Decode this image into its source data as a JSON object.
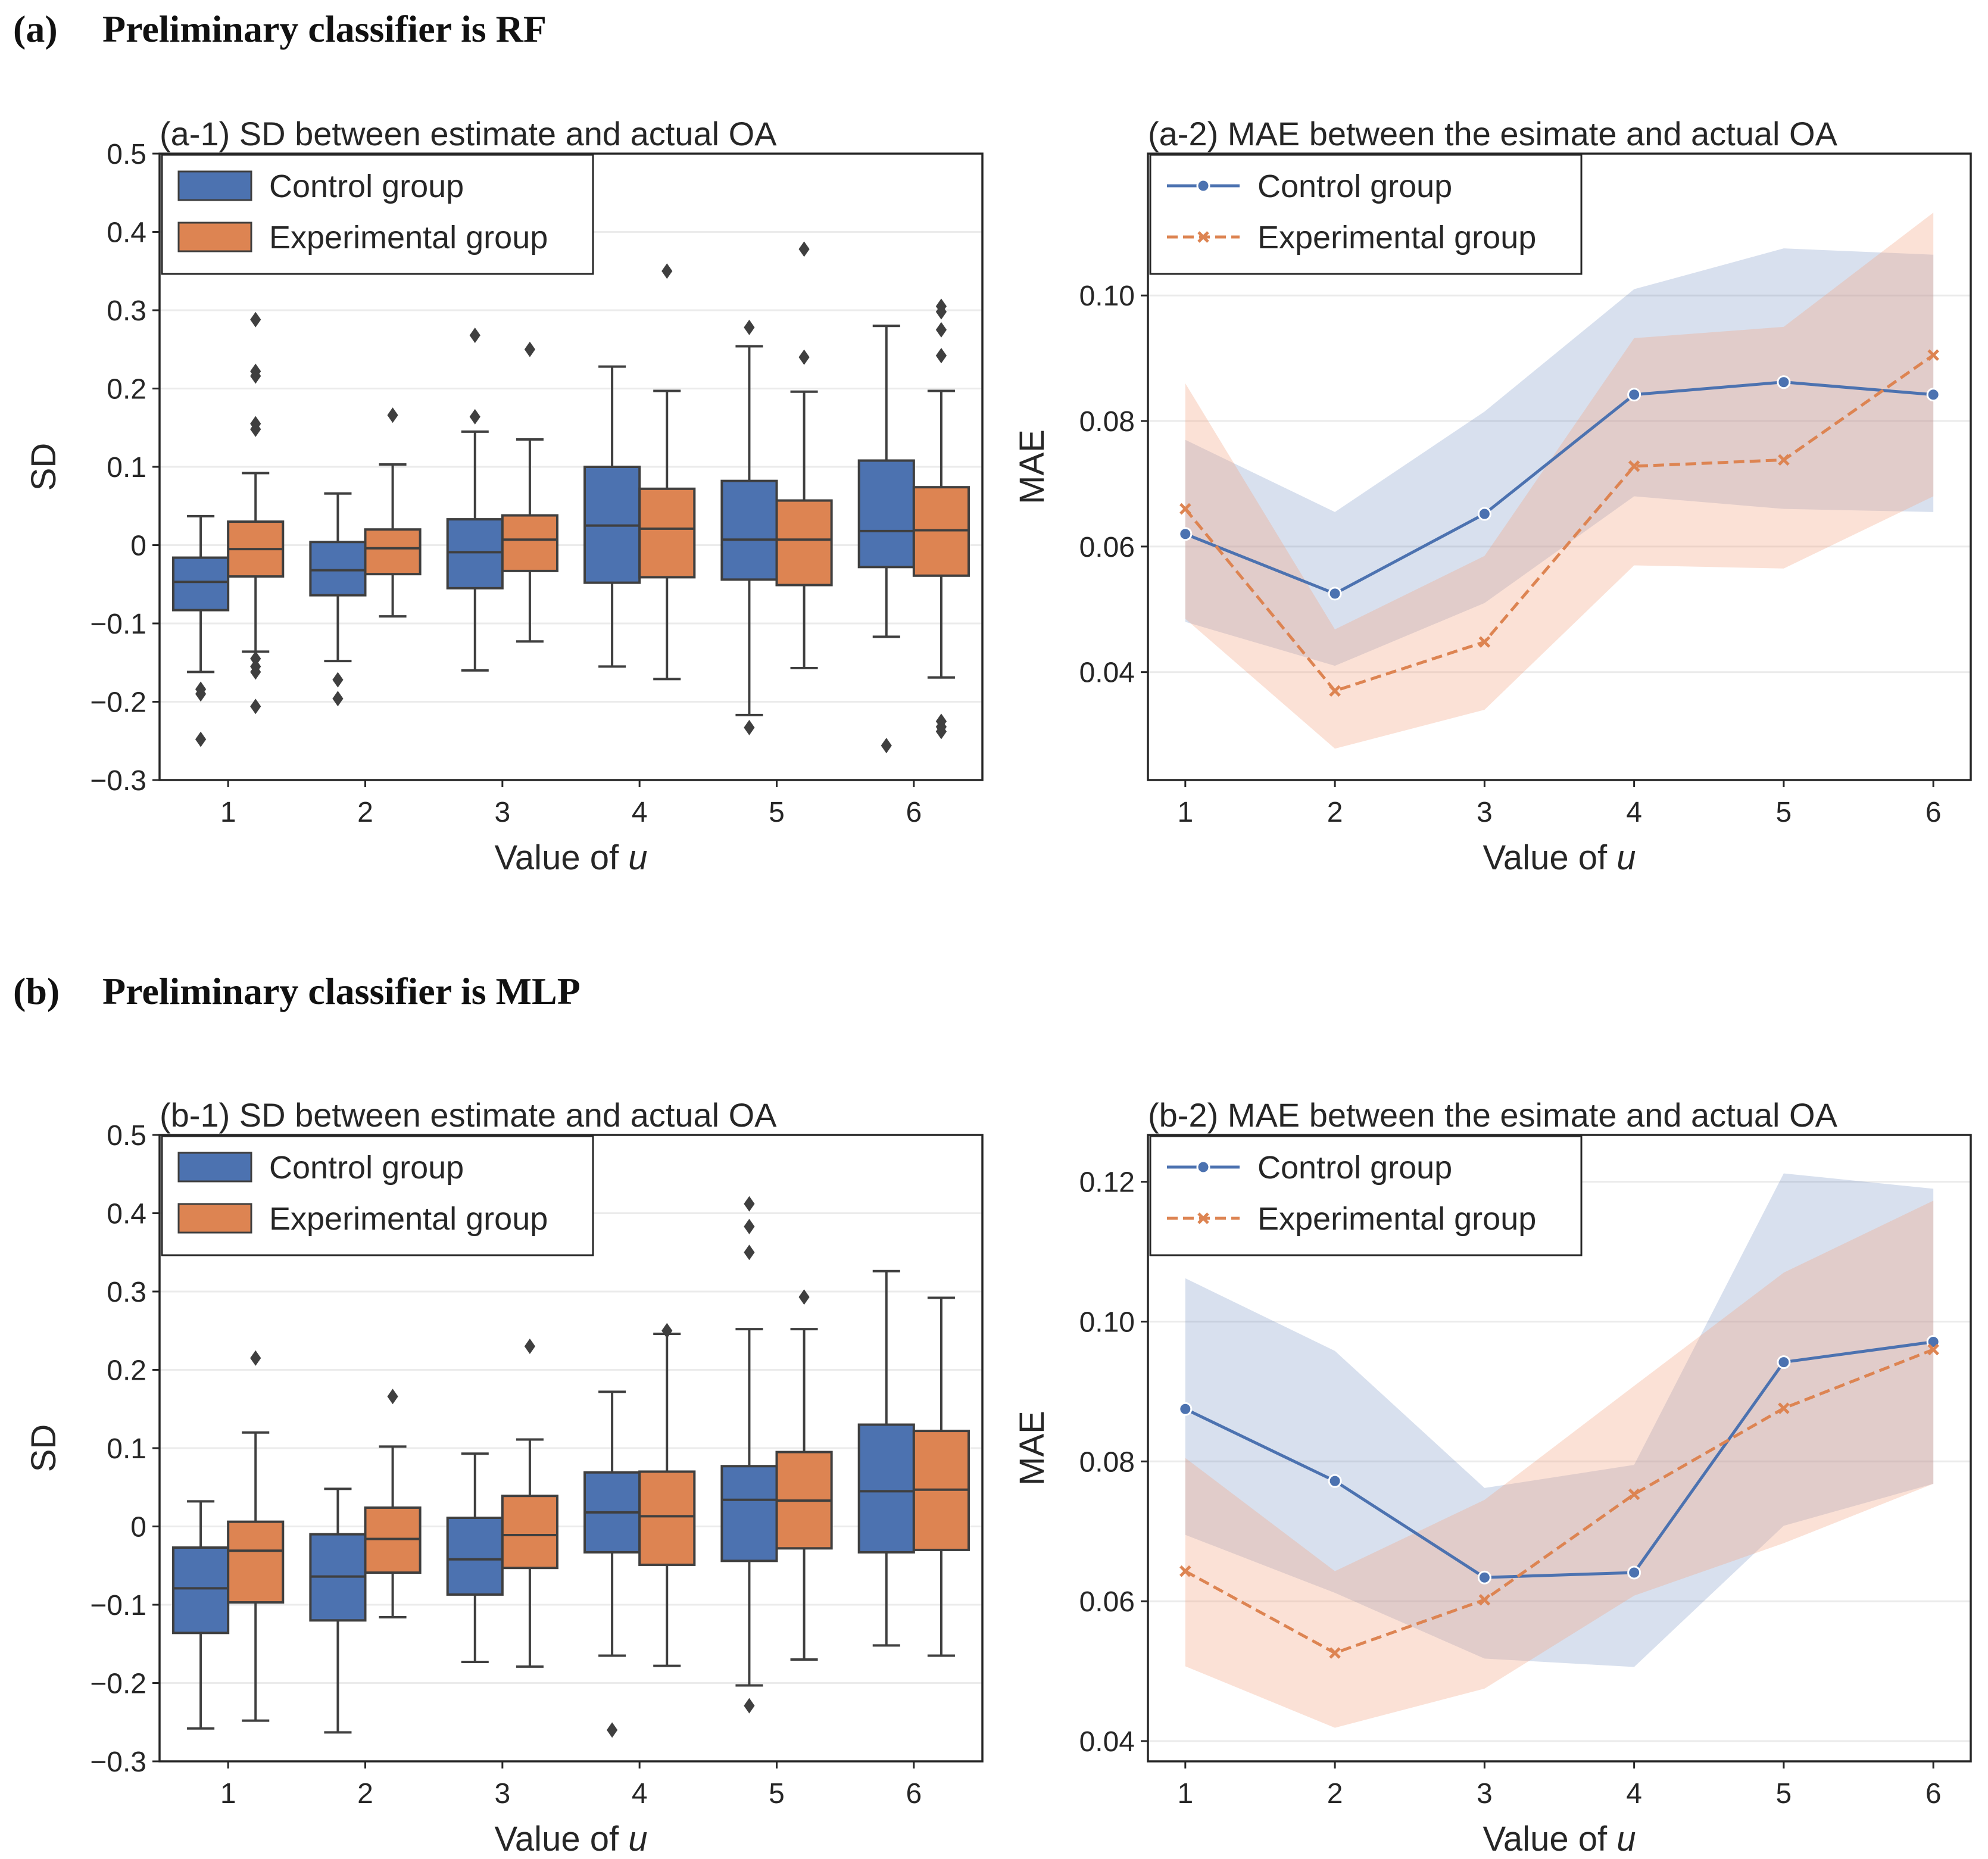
{
  "sections": [
    {
      "tag": "(a)",
      "title": "Preliminary classifier is RF"
    },
    {
      "tag": "(b)",
      "title": "Preliminary classifier is MLP"
    }
  ],
  "colors": {
    "control": "#4c72b0",
    "experimental": "#dd8452",
    "control_band": "#4c72b0",
    "experimental_band": "#f4a582",
    "whisker": "#3f3f3f"
  },
  "chart_data": [
    {
      "id": "a1",
      "type": "box",
      "title": "(a-1) SD between estimate and actual OA",
      "xlabel_prefix": "Value of ",
      "xlabel_var": "u",
      "ylabel": "SD",
      "categories": [
        "1",
        "2",
        "3",
        "4",
        "5",
        "6"
      ],
      "ylim": [
        -0.3,
        0.5
      ],
      "yticks": [
        -0.3,
        -0.2,
        -0.1,
        0,
        0.1,
        0.2,
        0.3,
        0.4,
        0.5
      ],
      "ytick_labels": [
        "−0.3",
        "−0.2",
        "−0.1",
        "0",
        "0.1",
        "0.2",
        "0.3",
        "0.4",
        "0.5"
      ],
      "legend": [
        "Control group",
        "Experimental group"
      ],
      "series": [
        {
          "name": "Control group",
          "boxes": [
            {
              "q1": -0.083,
              "median": -0.047,
              "q3": -0.016,
              "wlo": -0.162,
              "whi": 0.037,
              "fliers": [
                -0.184,
                -0.19,
                -0.248
              ]
            },
            {
              "q1": -0.064,
              "median": -0.032,
              "q3": 0.004,
              "wlo": -0.148,
              "whi": 0.066,
              "fliers": [
                -0.172,
                -0.196
              ]
            },
            {
              "q1": -0.055,
              "median": -0.009,
              "q3": 0.033,
              "wlo": -0.16,
              "whi": 0.145,
              "fliers": [
                0.164,
                0.268
              ]
            },
            {
              "q1": -0.048,
              "median": 0.025,
              "q3": 0.1,
              "wlo": -0.155,
              "whi": 0.228,
              "fliers": []
            },
            {
              "q1": -0.044,
              "median": 0.007,
              "q3": 0.082,
              "wlo": -0.217,
              "whi": 0.254,
              "fliers": [
                0.278,
                -0.233
              ]
            },
            {
              "q1": -0.028,
              "median": 0.018,
              "q3": 0.108,
              "wlo": -0.117,
              "whi": 0.28,
              "fliers": [
                -0.256
              ]
            }
          ]
        },
        {
          "name": "Experimental group",
          "boxes": [
            {
              "q1": -0.04,
              "median": -0.005,
              "q3": 0.03,
              "wlo": -0.136,
              "whi": 0.092,
              "fliers": [
                0.288,
                0.222,
                0.216,
                0.155,
                0.148,
                -0.145,
                -0.155,
                -0.162,
                -0.206
              ]
            },
            {
              "q1": -0.037,
              "median": -0.004,
              "q3": 0.02,
              "wlo": -0.091,
              "whi": 0.103,
              "fliers": [
                0.166
              ]
            },
            {
              "q1": -0.033,
              "median": 0.007,
              "q3": 0.038,
              "wlo": -0.123,
              "whi": 0.135,
              "fliers": [
                0.25
              ]
            },
            {
              "q1": -0.041,
              "median": 0.021,
              "q3": 0.072,
              "wlo": -0.171,
              "whi": 0.197,
              "fliers": [
                0.35
              ]
            },
            {
              "q1": -0.051,
              "median": 0.007,
              "q3": 0.057,
              "wlo": -0.157,
              "whi": 0.196,
              "fliers": [
                0.378,
                0.24
              ]
            },
            {
              "q1": -0.039,
              "median": 0.019,
              "q3": 0.074,
              "wlo": -0.169,
              "whi": 0.197,
              "fliers": [
                0.305,
                0.298,
                0.275,
                0.242,
                -0.225,
                -0.232,
                -0.238
              ]
            }
          ]
        }
      ]
    },
    {
      "id": "a2",
      "type": "line",
      "title": "(a-2) MAE between the esimate and actual OA",
      "xlabel_prefix": "Value of ",
      "xlabel_var": "u",
      "ylabel": "MAE",
      "x": [
        1,
        2,
        3,
        4,
        5,
        6
      ],
      "xtick_labels": [
        "1",
        "2",
        "3",
        "4",
        "5",
        "6"
      ],
      "ylim": [
        0.0228,
        0.1226
      ],
      "yticks": [
        0.04,
        0.06,
        0.08,
        0.1
      ],
      "ytick_labels": [
        "0.04",
        "0.06",
        "0.08",
        "0.10"
      ],
      "legend": [
        "Control group",
        "Experimental group"
      ],
      "series": [
        {
          "name": "Control group",
          "values": [
            0.062,
            0.0525,
            0.0652,
            0.0842,
            0.0862,
            0.0842
          ],
          "lower": [
            0.048,
            0.041,
            0.051,
            0.068,
            0.066,
            0.0655
          ],
          "upper": [
            0.077,
            0.0655,
            0.0815,
            0.101,
            0.1075,
            0.1065
          ]
        },
        {
          "name": "Experimental group",
          "values": [
            0.066,
            0.037,
            0.0448,
            0.0728,
            0.0738,
            0.0905
          ],
          "lower": [
            0.0485,
            0.0278,
            0.034,
            0.057,
            0.0565,
            0.068
          ],
          "upper": [
            0.086,
            0.0468,
            0.0585,
            0.0932,
            0.095,
            0.1132
          ]
        }
      ]
    },
    {
      "id": "b1",
      "type": "box",
      "title": "(b-1) SD between estimate and actual OA",
      "xlabel_prefix": "Value of ",
      "xlabel_var": "u",
      "ylabel": "SD",
      "categories": [
        "1",
        "2",
        "3",
        "4",
        "5",
        "6"
      ],
      "ylim": [
        -0.3,
        0.5
      ],
      "yticks": [
        -0.3,
        -0.2,
        -0.1,
        0,
        0.1,
        0.2,
        0.3,
        0.4,
        0.5
      ],
      "ytick_labels": [
        "−0.3",
        "−0.2",
        "−0.1",
        "0",
        "0.1",
        "0.2",
        "0.3",
        "0.4",
        "0.5"
      ],
      "legend": [
        "Control group",
        "Experimental group"
      ],
      "series": [
        {
          "name": "Control group",
          "boxes": [
            {
              "q1": -0.136,
              "median": -0.079,
              "q3": -0.027,
              "wlo": -0.258,
              "whi": 0.032,
              "fliers": []
            },
            {
              "q1": -0.12,
              "median": -0.064,
              "q3": -0.01,
              "wlo": -0.263,
              "whi": 0.048,
              "fliers": []
            },
            {
              "q1": -0.087,
              "median": -0.042,
              "q3": 0.011,
              "wlo": -0.173,
              "whi": 0.093,
              "fliers": []
            },
            {
              "q1": -0.033,
              "median": 0.018,
              "q3": 0.069,
              "wlo": -0.165,
              "whi": 0.172,
              "fliers": [
                -0.26
              ]
            },
            {
              "q1": -0.044,
              "median": 0.034,
              "q3": 0.077,
              "wlo": -0.203,
              "whi": 0.252,
              "fliers": [
                0.412,
                0.383,
                0.35,
                -0.229
              ]
            },
            {
              "q1": -0.033,
              "median": 0.045,
              "q3": 0.13,
              "wlo": -0.152,
              "whi": 0.326,
              "fliers": []
            }
          ]
        },
        {
          "name": "Experimental group",
          "boxes": [
            {
              "q1": -0.097,
              "median": -0.031,
              "q3": 0.006,
              "wlo": -0.248,
              "whi": 0.12,
              "fliers": [
                0.215
              ]
            },
            {
              "q1": -0.059,
              "median": -0.016,
              "q3": 0.024,
              "wlo": -0.116,
              "whi": 0.102,
              "fliers": [
                0.166
              ]
            },
            {
              "q1": -0.053,
              "median": -0.011,
              "q3": 0.039,
              "wlo": -0.179,
              "whi": 0.111,
              "fliers": [
                0.23
              ]
            },
            {
              "q1": -0.049,
              "median": 0.013,
              "q3": 0.07,
              "wlo": -0.178,
              "whi": 0.246,
              "fliers": [
                0.25
              ]
            },
            {
              "q1": -0.028,
              "median": 0.033,
              "q3": 0.095,
              "wlo": -0.17,
              "whi": 0.252,
              "fliers": [
                0.293
              ]
            },
            {
              "q1": -0.03,
              "median": 0.047,
              "q3": 0.122,
              "wlo": -0.165,
              "whi": 0.292,
              "fliers": []
            }
          ]
        }
      ]
    },
    {
      "id": "b2",
      "type": "line",
      "title": "(b-2) MAE between the esimate and actual OA",
      "xlabel_prefix": "Value of ",
      "xlabel_var": "u",
      "ylabel": "MAE",
      "x": [
        1,
        2,
        3,
        4,
        5,
        6
      ],
      "xtick_labels": [
        "1",
        "2",
        "3",
        "4",
        "5",
        "6"
      ],
      "ylim": [
        0.0371,
        0.1267
      ],
      "yticks": [
        0.04,
        0.06,
        0.08,
        0.1,
        0.12
      ],
      "ytick_labels": [
        "0.04",
        "0.06",
        "0.08",
        "0.10",
        "0.12"
      ],
      "legend": [
        "Control group",
        "Experimental group"
      ],
      "series": [
        {
          "name": "Control group",
          "values": [
            0.0875,
            0.0772,
            0.0634,
            0.0641,
            0.0942,
            0.0971
          ],
          "lower": [
            0.0695,
            0.0612,
            0.0518,
            0.0506,
            0.0708,
            0.0768
          ],
          "upper": [
            0.1062,
            0.0958,
            0.0762,
            0.0795,
            0.1212,
            0.119
          ]
        },
        {
          "name": "Experimental group",
          "values": [
            0.0643,
            0.0526,
            0.0602,
            0.0753,
            0.0876,
            0.096
          ],
          "lower": [
            0.0507,
            0.0419,
            0.0475,
            0.0608,
            0.0683,
            0.0768
          ],
          "upper": [
            0.0805,
            0.0643,
            0.0745,
            0.0908,
            0.107,
            0.1173
          ]
        }
      ]
    }
  ]
}
